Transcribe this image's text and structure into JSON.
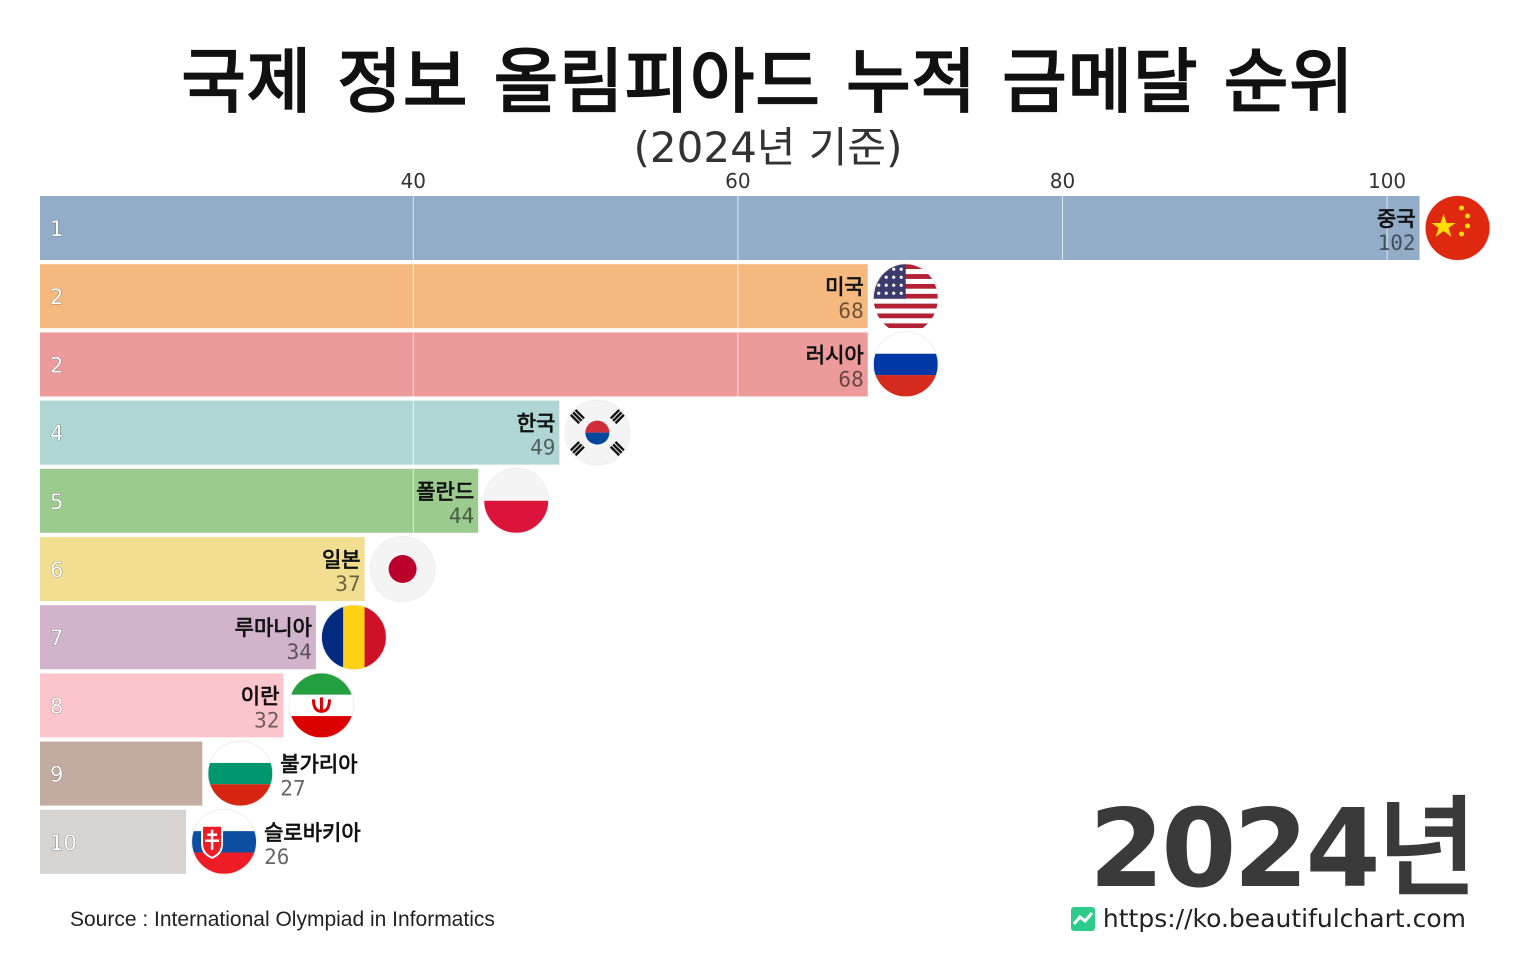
{
  "title": "국제 정보 올림피아드 누적 금메달 순위",
  "subtitle": "(2024년 기준)",
  "year_label": "2024년",
  "source": "Source : International Olympiad in Informatics",
  "website": "https://ko.beautifulchart.com",
  "chart_data": {
    "type": "bar",
    "orientation": "horizontal",
    "title": "국제 정보 올림피아드 누적 금메달 순위",
    "subtitle": "(2024년 기준)",
    "xlim": [
      17,
      103
    ],
    "x_ticks": [
      40,
      60,
      80,
      100
    ],
    "grid": true,
    "bars": [
      {
        "rank": "1",
        "name": "중국",
        "value": 102,
        "color": "#93adc9",
        "flag": "china-flag-icon"
      },
      {
        "rank": "2",
        "name": "미국",
        "value": 68,
        "color": "#f5b97f",
        "flag": "usa-flag-icon"
      },
      {
        "rank": "2",
        "name": "러시아",
        "value": 68,
        "color": "#ec9a9a",
        "flag": "russia-flag-icon"
      },
      {
        "rank": "4",
        "name": "한국",
        "value": 49,
        "color": "#afd6d2",
        "flag": "korea-flag-icon"
      },
      {
        "rank": "5",
        "name": "폴란드",
        "value": 44,
        "color": "#9ccb8f",
        "flag": "poland-flag-icon"
      },
      {
        "rank": "6",
        "name": "일본",
        "value": 37,
        "color": "#f2de90",
        "flag": "japan-flag-icon"
      },
      {
        "rank": "7",
        "name": "루마니아",
        "value": 34,
        "color": "#d2b3cc",
        "flag": "romania-flag-icon"
      },
      {
        "rank": "8",
        "name": "이란",
        "value": 32,
        "color": "#fcc5cc",
        "flag": "iran-flag-icon"
      },
      {
        "rank": "9",
        "name": "불가리아",
        "value": 27,
        "color": "#c2aba0",
        "flag": "bulgaria-flag-icon"
      },
      {
        "rank": "10",
        "name": "슬로바키아",
        "value": 26,
        "color": "#d6d3d1",
        "flag": "slovakia-flag-icon"
      }
    ]
  }
}
